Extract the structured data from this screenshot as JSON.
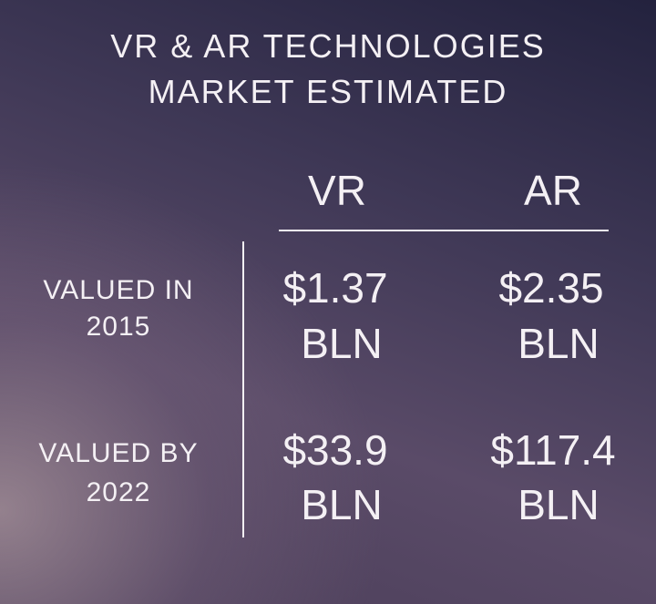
{
  "title": {
    "line1": "VR & AR TECHNOLOGIES",
    "line2": "MARKET ESTIMATED"
  },
  "columns": [
    "VR",
    "AR"
  ],
  "rows": [
    {
      "label1": "VALUED IN",
      "label2": "2015",
      "vr": "$1.37",
      "vr_unit": "BLN",
      "ar": "$2.35",
      "ar_unit": "BLN"
    },
    {
      "label1": "VALUED BY",
      "label2": "2022",
      "vr": "$33.9",
      "vr_unit": "BLN",
      "ar": "$117.4",
      "ar_unit": "BLN"
    }
  ],
  "colors": {
    "text": "#f4f0f4",
    "background_dark": "#23223e",
    "background_light": "#8c7a88"
  }
}
